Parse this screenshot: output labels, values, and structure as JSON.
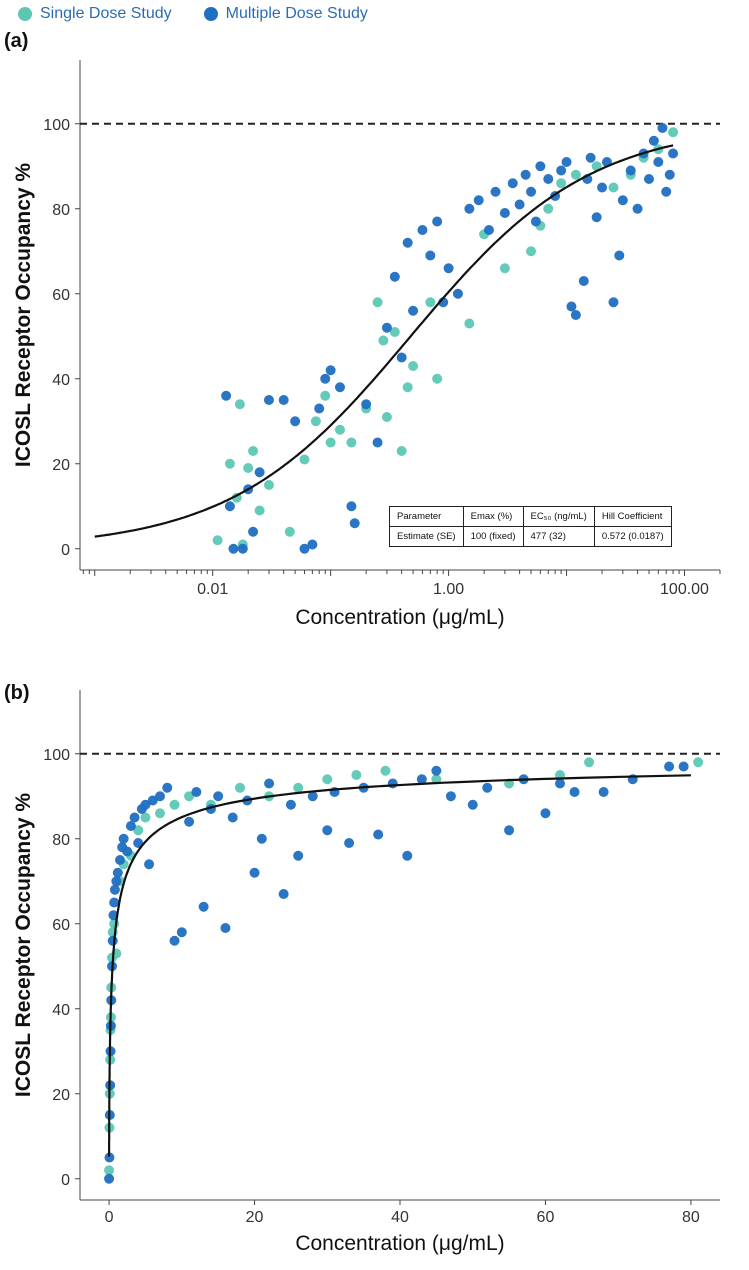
{
  "legend": [
    {
      "label": "Single Dose Study",
      "color": "#5cc8b4"
    },
    {
      "label": "Multiple Dose Study",
      "color": "#1f6fc2"
    }
  ],
  "table": {
    "header": [
      "Parameter",
      "Emax (%)",
      "EC₅₀ (ng/mL)",
      "Hill Coefficient"
    ],
    "row": [
      "Estimate (SE)",
      "100 (fixed)",
      "477 (32)",
      "0.572 (0.0187)"
    ]
  },
  "chart_data": [
    {
      "type": "scatter",
      "panel_label": "(a)",
      "title": "",
      "xlabel": "Concentration (μg/mL)",
      "ylabel": "ICOSL Receptor Occupancy %",
      "xscale": "log",
      "xlim": [
        0.00075,
        200
      ],
      "ylim": [
        -5,
        115
      ],
      "xticks": [
        0.01,
        1,
        100
      ],
      "xtick_labels": [
        "0.01",
        "1.00",
        "100.00"
      ],
      "yticks": [
        0,
        20,
        40,
        60,
        80,
        100
      ],
      "reference_line": 100,
      "model": {
        "emax": 100,
        "ec50": 0.477,
        "hill": 0.572,
        "x_range": [
          0.001,
          80
        ]
      },
      "series": [
        {
          "name": "Single Dose Study",
          "color": "#5cc8b4",
          "points": [
            [
              0.011,
              2
            ],
            [
              0.014,
              20
            ],
            [
              0.016,
              12
            ],
            [
              0.017,
              34
            ],
            [
              0.018,
              1
            ],
            [
              0.02,
              19
            ],
            [
              0.022,
              23
            ],
            [
              0.025,
              9
            ],
            [
              0.03,
              15
            ],
            [
              0.045,
              4
            ],
            [
              0.06,
              21
            ],
            [
              0.075,
              30
            ],
            [
              0.09,
              36
            ],
            [
              0.1,
              25
            ],
            [
              0.12,
              28
            ],
            [
              0.15,
              25
            ],
            [
              0.2,
              33
            ],
            [
              0.25,
              58
            ],
            [
              0.28,
              49
            ],
            [
              0.3,
              31
            ],
            [
              0.35,
              51
            ],
            [
              0.4,
              23
            ],
            [
              0.45,
              38
            ],
            [
              0.5,
              43
            ],
            [
              0.7,
              58
            ],
            [
              0.8,
              40
            ],
            [
              1.5,
              53
            ],
            [
              2,
              74
            ],
            [
              3,
              66
            ],
            [
              5,
              70
            ],
            [
              6,
              76
            ],
            [
              7,
              80
            ],
            [
              9,
              86
            ],
            [
              12,
              88
            ],
            [
              18,
              90
            ],
            [
              25,
              85
            ],
            [
              35,
              88
            ],
            [
              45,
              92
            ],
            [
              60,
              94
            ],
            [
              80,
              98
            ]
          ]
        },
        {
          "name": "Multiple Dose Study",
          "color": "#1f6fc2",
          "points": [
            [
              0.013,
              36
            ],
            [
              0.014,
              10
            ],
            [
              0.015,
              0
            ],
            [
              0.018,
              0
            ],
            [
              0.02,
              14
            ],
            [
              0.022,
              4
            ],
            [
              0.025,
              18
            ],
            [
              0.03,
              35
            ],
            [
              0.04,
              35
            ],
            [
              0.05,
              30
            ],
            [
              0.06,
              0
            ],
            [
              0.07,
              1
            ],
            [
              0.08,
              33
            ],
            [
              0.09,
              40
            ],
            [
              0.1,
              42
            ],
            [
              0.12,
              38
            ],
            [
              0.15,
              10
            ],
            [
              0.16,
              6
            ],
            [
              0.2,
              34
            ],
            [
              0.25,
              25
            ],
            [
              0.3,
              52
            ],
            [
              0.35,
              64
            ],
            [
              0.4,
              45
            ],
            [
              0.45,
              72
            ],
            [
              0.5,
              56
            ],
            [
              0.6,
              75
            ],
            [
              0.7,
              69
            ],
            [
              0.8,
              77
            ],
            [
              0.9,
              58
            ],
            [
              1,
              66
            ],
            [
              1.2,
              60
            ],
            [
              1.5,
              80
            ],
            [
              1.8,
              82
            ],
            [
              2.2,
              75
            ],
            [
              2.5,
              84
            ],
            [
              3,
              79
            ],
            [
              3.5,
              86
            ],
            [
              4,
              81
            ],
            [
              4.5,
              88
            ],
            [
              5,
              84
            ],
            [
              5.5,
              77
            ],
            [
              6,
              90
            ],
            [
              7,
              87
            ],
            [
              8,
              83
            ],
            [
              9,
              89
            ],
            [
              10,
              91
            ],
            [
              11,
              57
            ],
            [
              12,
              55
            ],
            [
              14,
              63
            ],
            [
              15,
              87
            ],
            [
              16,
              92
            ],
            [
              18,
              78
            ],
            [
              20,
              85
            ],
            [
              22,
              91
            ],
            [
              25,
              58
            ],
            [
              28,
              69
            ],
            [
              30,
              82
            ],
            [
              35,
              89
            ],
            [
              40,
              80
            ],
            [
              45,
              93
            ],
            [
              50,
              87
            ],
            [
              55,
              96
            ],
            [
              60,
              91
            ],
            [
              65,
              99
            ],
            [
              70,
              84
            ],
            [
              75,
              88
            ],
            [
              80,
              93
            ]
          ]
        }
      ]
    },
    {
      "type": "scatter",
      "panel_label": "(b)",
      "title": "",
      "xlabel": "Concentration (μg/mL)",
      "ylabel": "ICOSL Receptor Occupancy %",
      "xscale": "linear",
      "xlim": [
        -4,
        84
      ],
      "ylim": [
        -5,
        115
      ],
      "xticks": [
        0,
        20,
        40,
        60,
        80
      ],
      "yticks": [
        0,
        20,
        40,
        60,
        80,
        100
      ],
      "reference_line": 100,
      "model": {
        "emax": 100,
        "ec50": 0.477,
        "hill": 0.572,
        "x_range": [
          0.003,
          80
        ]
      },
      "series": [
        {
          "name": "Single Dose Study",
          "color": "#5cc8b4",
          "points": [
            [
              0,
              2
            ],
            [
              0.05,
              12
            ],
            [
              0.1,
              20
            ],
            [
              0.15,
              28
            ],
            [
              0.2,
              35
            ],
            [
              0.25,
              38
            ],
            [
              0.3,
              45
            ],
            [
              0.4,
              52
            ],
            [
              0.5,
              58
            ],
            [
              0.7,
              60
            ],
            [
              1,
              53
            ],
            [
              1.5,
              70
            ],
            [
              2,
              74
            ],
            [
              3,
              76
            ],
            [
              4,
              82
            ],
            [
              5,
              85
            ],
            [
              7,
              86
            ],
            [
              9,
              88
            ],
            [
              11,
              90
            ],
            [
              14,
              88
            ],
            [
              18,
              92
            ],
            [
              22,
              90
            ],
            [
              26,
              92
            ],
            [
              30,
              94
            ],
            [
              34,
              95
            ],
            [
              38,
              96
            ],
            [
              45,
              94
            ],
            [
              55,
              93
            ],
            [
              62,
              95
            ],
            [
              66,
              98
            ],
            [
              81,
              98
            ]
          ]
        },
        {
          "name": "Multiple Dose Study",
          "color": "#1f6fc2",
          "points": [
            [
              0,
              0
            ],
            [
              0.05,
              5
            ],
            [
              0.1,
              15
            ],
            [
              0.15,
              22
            ],
            [
              0.2,
              30
            ],
            [
              0.25,
              36
            ],
            [
              0.3,
              42
            ],
            [
              0.4,
              50
            ],
            [
              0.5,
              56
            ],
            [
              0.6,
              62
            ],
            [
              0.7,
              65
            ],
            [
              0.8,
              68
            ],
            [
              1,
              70
            ],
            [
              1.2,
              72
            ],
            [
              1.5,
              75
            ],
            [
              1.8,
              78
            ],
            [
              2,
              80
            ],
            [
              2.5,
              77
            ],
            [
              3,
              83
            ],
            [
              3.5,
              85
            ],
            [
              4,
              79
            ],
            [
              4.5,
              87
            ],
            [
              5,
              88
            ],
            [
              5.5,
              74
            ],
            [
              6,
              89
            ],
            [
              7,
              90
            ],
            [
              8,
              92
            ],
            [
              9,
              56
            ],
            [
              10,
              58
            ],
            [
              11,
              84
            ],
            [
              12,
              91
            ],
            [
              13,
              64
            ],
            [
              14,
              87
            ],
            [
              15,
              90
            ],
            [
              16,
              59
            ],
            [
              17,
              85
            ],
            [
              19,
              89
            ],
            [
              20,
              72
            ],
            [
              21,
              80
            ],
            [
              22,
              93
            ],
            [
              24,
              67
            ],
            [
              25,
              88
            ],
            [
              26,
              76
            ],
            [
              28,
              90
            ],
            [
              30,
              82
            ],
            [
              31,
              91
            ],
            [
              33,
              79
            ],
            [
              35,
              92
            ],
            [
              37,
              81
            ],
            [
              39,
              93
            ],
            [
              41,
              76
            ],
            [
              43,
              94
            ],
            [
              45,
              96
            ],
            [
              47,
              90
            ],
            [
              50,
              88
            ],
            [
              52,
              92
            ],
            [
              55,
              82
            ],
            [
              57,
              94
            ],
            [
              60,
              86
            ],
            [
              62,
              93
            ],
            [
              64,
              91
            ],
            [
              68,
              91
            ],
            [
              72,
              94
            ],
            [
              77,
              97
            ],
            [
              79,
              97
            ]
          ]
        }
      ]
    }
  ]
}
